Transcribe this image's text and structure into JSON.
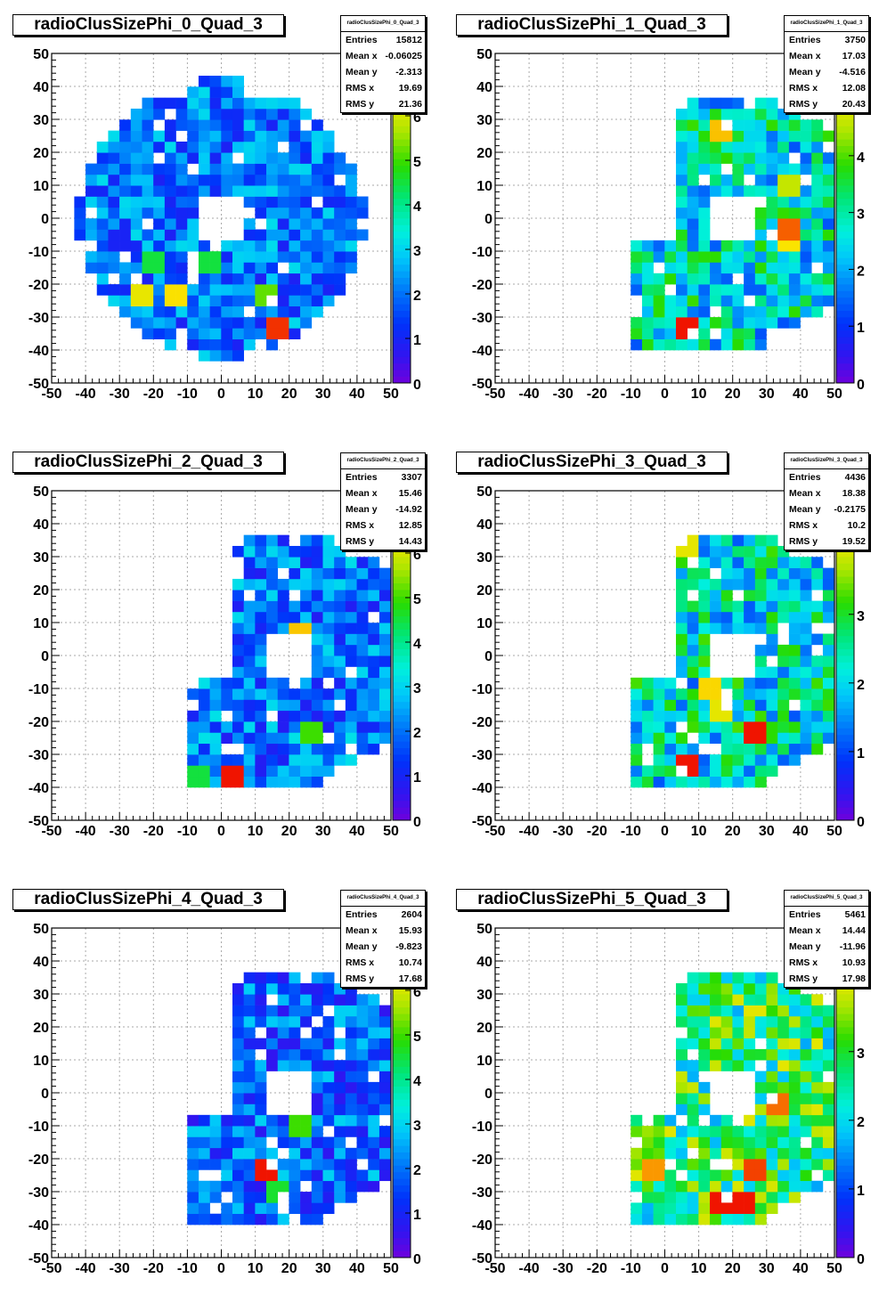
{
  "page": {
    "footer_text": ""
  },
  "chart_data": [
    {
      "type": "heatmap",
      "title": "radioClusSizePhi_0_Quad_3",
      "stats_header": "radioClusSizePhi_0_Quad_3",
      "stats": [
        [
          "Entries",
          "15812"
        ],
        [
          "Mean x",
          "-0.06025"
        ],
        [
          "Mean y",
          "-2.313"
        ],
        [
          "RMS x",
          "19.69"
        ],
        [
          "RMS y",
          "21.36"
        ]
      ],
      "xlim": [
        -50,
        50
      ],
      "ylim": [
        -50,
        50
      ],
      "zlim": [
        0,
        7.4
      ],
      "ztick_max": 7,
      "xticks": [
        -50,
        -40,
        -30,
        -20,
        -10,
        0,
        10,
        20,
        30,
        40,
        50
      ],
      "yticks": [
        -50,
        -40,
        -30,
        -20,
        -10,
        0,
        10,
        20,
        30,
        40,
        50
      ],
      "bin_size": 3.33,
      "shape": "ring",
      "center": [
        0,
        0
      ],
      "r_inner": 8,
      "r_outer": 42,
      "base_value": 2.0,
      "spread": 1.1,
      "hot_cells": [
        [
          15,
          -35,
          7.3
        ],
        [
          -25,
          -25,
          6.2
        ],
        [
          -12,
          -25,
          6.4
        ],
        [
          12,
          -25,
          5.2
        ],
        [
          -20,
          -15,
          4.5
        ],
        [
          -5,
          -15,
          4.5
        ]
      ]
    },
    {
      "type": "heatmap",
      "title": "radioClusSizePhi_1_Quad_3",
      "stats_header": "radioClusSizePhi_1_Quad_3",
      "stats": [
        [
          "Entries",
          "3750"
        ],
        [
          "Mean x",
          "17.03"
        ],
        [
          "Mean y",
          "-4.516"
        ],
        [
          "RMS x",
          "12.08"
        ],
        [
          "RMS y",
          "20.43"
        ]
      ],
      "xlim": [
        -50,
        50
      ],
      "ylim": [
        -50,
        50
      ],
      "zlim": [
        0,
        5.8
      ],
      "ztick_max": 5,
      "xticks": [
        -50,
        -40,
        -30,
        -20,
        -10,
        0,
        10,
        20,
        30,
        40,
        50
      ],
      "yticks": [
        -50,
        -40,
        -30,
        -20,
        -10,
        0,
        10,
        20,
        30,
        40,
        50
      ],
      "bin_size": 3.33,
      "shape": "crescent",
      "center": [
        20,
        0
      ],
      "r_inner": 8,
      "r_outer": 42,
      "base_value": 2.6,
      "spread": 1.3,
      "hot_cells": [
        [
          8,
          -35,
          5.8
        ],
        [
          38,
          10,
          4.6
        ],
        [
          38,
          -2,
          5.6
        ],
        [
          37,
          -8,
          5.0
        ],
        [
          18,
          27,
          5.2
        ]
      ]
    },
    {
      "type": "heatmap",
      "title": "radioClusSizePhi_2_Quad_3",
      "stats_header": "radioClusSizePhi_2_Quad_3",
      "stats": [
        [
          "Entries",
          "3307"
        ],
        [
          "Mean x",
          "15.46"
        ],
        [
          "Mean y",
          "-14.92"
        ],
        [
          "RMS x",
          "12.85"
        ],
        [
          "RMS y",
          "14.43"
        ]
      ],
      "xlim": [
        -50,
        50
      ],
      "ylim": [
        -50,
        50
      ],
      "zlim": [
        0,
        7.4
      ],
      "ztick_max": 7,
      "xticks": [
        -50,
        -40,
        -30,
        -20,
        -10,
        0,
        10,
        20,
        30,
        40,
        50
      ],
      "yticks": [
        -50,
        -40,
        -30,
        -20,
        -10,
        0,
        10,
        20,
        30,
        40,
        50
      ],
      "bin_size": 3.33,
      "shape": "crescent",
      "center": [
        20,
        0
      ],
      "r_inner": 8,
      "r_outer": 42,
      "base_value": 2.0,
      "spread": 1.2,
      "hot_cells": [
        [
          2,
          -38,
          7.4
        ],
        [
          22,
          5,
          6.6
        ],
        [
          -8,
          -38,
          4.5
        ],
        [
          28,
          -22,
          5.0
        ]
      ]
    },
    {
      "type": "heatmap",
      "title": "radioClusSizePhi_3_Quad_3",
      "stats_header": "radioClusSizePhi_3_Quad_3",
      "stats": [
        [
          "Entries",
          "4436"
        ],
        [
          "Mean x",
          "18.38"
        ],
        [
          "Mean y",
          "-0.2175"
        ],
        [
          "RMS x",
          "10.2"
        ],
        [
          "RMS y",
          "19.52"
        ]
      ],
      "xlim": [
        -50,
        50
      ],
      "ylim": [
        -50,
        50
      ],
      "zlim": [
        0,
        4.8
      ],
      "ztick_max": 4,
      "xticks": [
        -50,
        -40,
        -30,
        -20,
        -10,
        0,
        10,
        20,
        30,
        40,
        50
      ],
      "yticks": [
        -50,
        -40,
        -30,
        -20,
        -10,
        0,
        10,
        20,
        30,
        40,
        50
      ],
      "bin_size": 3.33,
      "shape": "crescent",
      "center": [
        20,
        0
      ],
      "r_inner": 8,
      "r_outer": 42,
      "base_value": 2.2,
      "spread": 1.1,
      "hot_cells": [
        [
          5,
          -32,
          4.8
        ],
        [
          25,
          -25,
          4.8
        ],
        [
          18,
          -18,
          4.0
        ],
        [
          12,
          -10,
          4.2
        ],
        [
          8,
          32,
          4.0
        ]
      ]
    },
    {
      "type": "heatmap",
      "title": "radioClusSizePhi_4_Quad_3",
      "stats_header": "radioClusSizePhi_4_Quad_3",
      "stats": [
        [
          "Entries",
          "2604"
        ],
        [
          "Mean x",
          "15.93"
        ],
        [
          "Mean y",
          "-9.823"
        ],
        [
          "RMS x",
          "10.74"
        ],
        [
          "RMS y",
          "17.68"
        ]
      ],
      "xlim": [
        -50,
        50
      ],
      "ylim": [
        -50,
        50
      ],
      "zlim": [
        0,
        7.4
      ],
      "ztick_max": 7,
      "xticks": [
        -50,
        -40,
        -30,
        -20,
        -10,
        0,
        10,
        20,
        30,
        40,
        50
      ],
      "yticks": [
        -50,
        -40,
        -30,
        -20,
        -10,
        0,
        10,
        20,
        30,
        40,
        50
      ],
      "bin_size": 3.33,
      "shape": "crescent",
      "center": [
        20,
        0
      ],
      "r_inner": 8,
      "r_outer": 42,
      "base_value": 1.8,
      "spread": 1.2,
      "hot_cells": [
        [
          12,
          -25,
          7.4
        ],
        [
          22,
          -10,
          5.0
        ],
        [
          15,
          -30,
          4.6
        ]
      ]
    },
    {
      "type": "heatmap",
      "title": "radioClusSizePhi_5_Quad_3",
      "stats_header": "radioClusSizePhi_5_Quad_3",
      "stats": [
        [
          "Entries",
          "5461"
        ],
        [
          "Mean x",
          "14.44"
        ],
        [
          "Mean y",
          "-11.96"
        ],
        [
          "RMS x",
          "10.93"
        ],
        [
          "RMS y",
          "17.98"
        ]
      ],
      "xlim": [
        -50,
        50
      ],
      "ylim": [
        -50,
        50
      ],
      "zlim": [
        0,
        4.8
      ],
      "ztick_max": 4,
      "xticks": [
        -50,
        -40,
        -30,
        -20,
        -10,
        0,
        10,
        20,
        30,
        40,
        50
      ],
      "yticks": [
        -50,
        -40,
        -30,
        -20,
        -10,
        0,
        10,
        20,
        30,
        40,
        50
      ],
      "bin_size": 3.33,
      "shape": "crescent",
      "center": [
        20,
        0
      ],
      "r_inner": 8,
      "r_outer": 42,
      "base_value": 2.8,
      "spread": 1.2,
      "hot_cells": [
        [
          15,
          -32,
          4.8
        ],
        [
          22,
          -32,
          4.8
        ],
        [
          28,
          -22,
          4.7
        ],
        [
          32,
          -2,
          4.6
        ],
        [
          -5,
          -25,
          4.5
        ]
      ]
    }
  ]
}
